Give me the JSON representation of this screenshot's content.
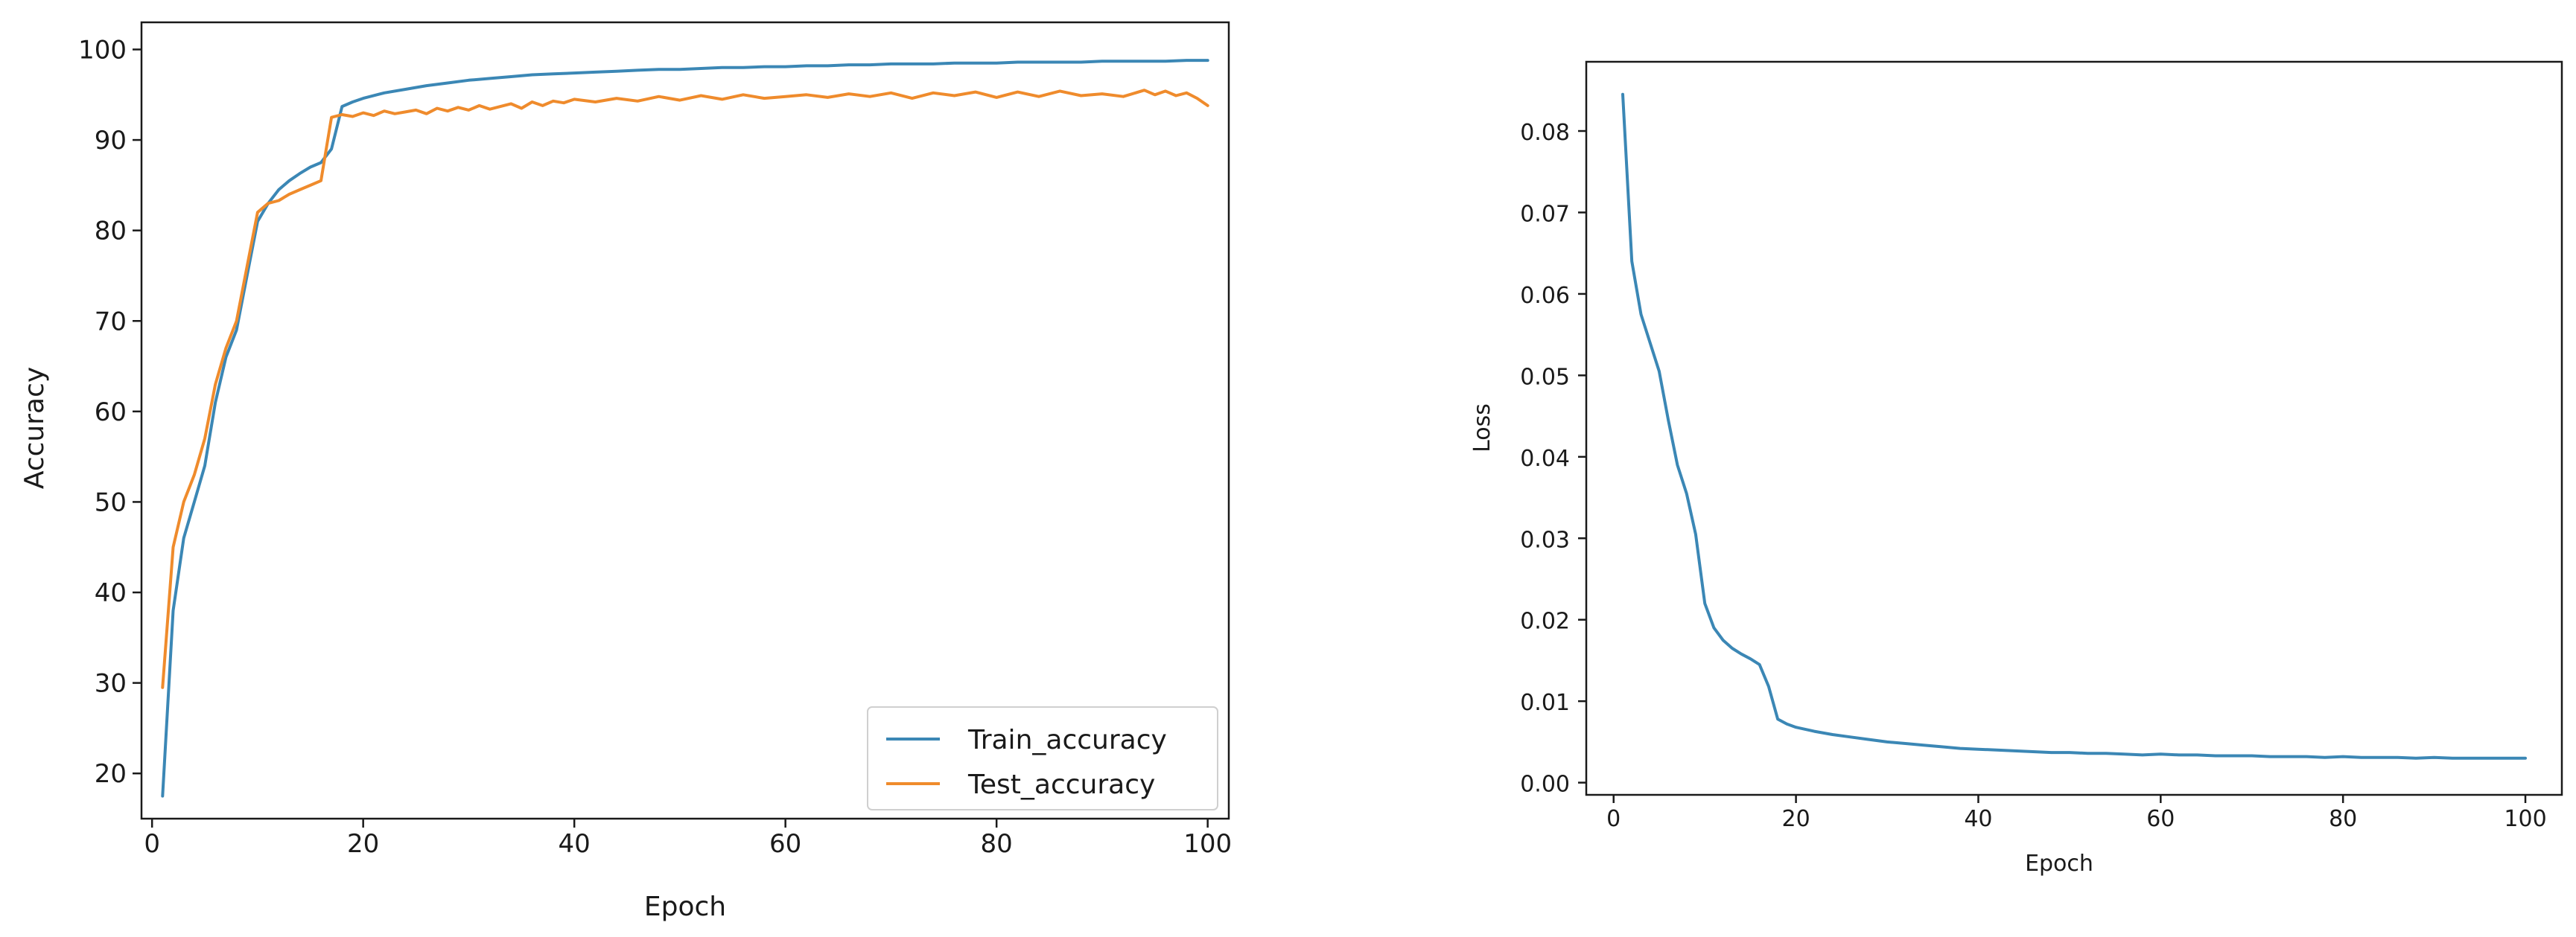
{
  "colors": {
    "train": "#3b87b5",
    "test": "#ef8b2c",
    "loss": "#3b87b5"
  },
  "chart_data": [
    {
      "type": "line",
      "xlabel": "Epoch",
      "ylabel": "Accuracy",
      "xlim": [
        -1,
        102
      ],
      "ylim": [
        15,
        103
      ],
      "xticks": [
        0,
        20,
        40,
        60,
        80,
        100
      ],
      "yticks": [
        20,
        30,
        40,
        50,
        60,
        70,
        80,
        90,
        100
      ],
      "legend": {
        "placement": "lower-right",
        "entries": [
          "Train_accuracy",
          "Test_accuracy"
        ]
      },
      "series": [
        {
          "name": "Train_accuracy",
          "x": [
            1,
            2,
            3,
            4,
            5,
            6,
            7,
            8,
            9,
            10,
            11,
            12,
            13,
            14,
            15,
            16,
            17,
            18,
            19,
            20,
            22,
            24,
            26,
            28,
            30,
            32,
            34,
            36,
            38,
            40,
            42,
            44,
            46,
            48,
            50,
            52,
            54,
            56,
            58,
            60,
            62,
            64,
            66,
            68,
            70,
            72,
            74,
            76,
            78,
            80,
            82,
            84,
            86,
            88,
            90,
            92,
            94,
            96,
            98,
            100
          ],
          "y": [
            17.5,
            38,
            46,
            50,
            54,
            61,
            66,
            69,
            75,
            81,
            83,
            84.5,
            85.5,
            86.3,
            87,
            87.5,
            89,
            93.7,
            94.2,
            94.6,
            95.2,
            95.6,
            96,
            96.3,
            96.6,
            96.8,
            97,
            97.2,
            97.3,
            97.4,
            97.5,
            97.6,
            97.7,
            97.8,
            97.8,
            97.9,
            98,
            98,
            98.1,
            98.1,
            98.2,
            98.2,
            98.3,
            98.3,
            98.4,
            98.4,
            98.4,
            98.5,
            98.5,
            98.5,
            98.6,
            98.6,
            98.6,
            98.6,
            98.7,
            98.7,
            98.7,
            98.7,
            98.8,
            98.8
          ]
        },
        {
          "name": "Test_accuracy",
          "x": [
            1,
            2,
            3,
            4,
            5,
            6,
            7,
            8,
            9,
            10,
            11,
            12,
            13,
            14,
            15,
            16,
            17,
            18,
            19,
            20,
            21,
            22,
            23,
            24,
            25,
            26,
            27,
            28,
            29,
            30,
            31,
            32,
            33,
            34,
            35,
            36,
            37,
            38,
            39,
            40,
            42,
            44,
            46,
            48,
            50,
            52,
            54,
            56,
            58,
            60,
            62,
            64,
            66,
            68,
            70,
            72,
            74,
            76,
            78,
            80,
            82,
            84,
            86,
            88,
            90,
            92,
            94,
            95,
            96,
            97,
            98,
            99,
            100
          ],
          "y": [
            29.5,
            45,
            50,
            53,
            57,
            63,
            67,
            70,
            76,
            82,
            83,
            83.3,
            84,
            84.5,
            85,
            85.5,
            92.5,
            92.8,
            92.6,
            93,
            92.7,
            93.2,
            92.9,
            93.1,
            93.3,
            92.9,
            93.5,
            93.2,
            93.6,
            93.3,
            93.8,
            93.4,
            93.7,
            94,
            93.5,
            94.2,
            93.8,
            94.3,
            94.1,
            94.5,
            94.2,
            94.6,
            94.3,
            94.8,
            94.4,
            94.9,
            94.5,
            95,
            94.6,
            94.8,
            95,
            94.7,
            95.1,
            94.8,
            95.2,
            94.6,
            95.2,
            94.9,
            95.3,
            94.7,
            95.3,
            94.8,
            95.4,
            94.9,
            95.1,
            94.8,
            95.5,
            95,
            95.4,
            94.9,
            95.2,
            94.6,
            93.8
          ]
        }
      ]
    },
    {
      "type": "line",
      "xlabel": "Epoch",
      "ylabel": "Loss",
      "xlim": [
        -3,
        104
      ],
      "ylim": [
        -0.0015,
        0.0885
      ],
      "xticks": [
        0,
        20,
        40,
        60,
        80,
        100
      ],
      "yticks": [
        0.0,
        0.01,
        0.02,
        0.03,
        0.04,
        0.05,
        0.06,
        0.07,
        0.08
      ],
      "ytick_labels": [
        "0.00",
        "0.01",
        "0.02",
        "0.03",
        "0.04",
        "0.05",
        "0.06",
        "0.07",
        "0.08"
      ],
      "series": [
        {
          "x": [
            1,
            2,
            3,
            4,
            5,
            6,
            7,
            8,
            9,
            10,
            11,
            12,
            13,
            14,
            15,
            16,
            17,
            18,
            19,
            20,
            22,
            24,
            26,
            28,
            30,
            32,
            34,
            36,
            38,
            40,
            42,
            44,
            46,
            48,
            50,
            52,
            54,
            56,
            58,
            60,
            62,
            64,
            66,
            68,
            70,
            72,
            74,
            76,
            78,
            80,
            82,
            84,
            86,
            88,
            90,
            92,
            94,
            96,
            98,
            100
          ],
          "y": [
            0.0845,
            0.064,
            0.0575,
            0.054,
            0.0505,
            0.0445,
            0.039,
            0.0355,
            0.0305,
            0.022,
            0.019,
            0.0175,
            0.0165,
            0.0158,
            0.0152,
            0.0145,
            0.0118,
            0.0078,
            0.0072,
            0.0068,
            0.0063,
            0.0059,
            0.0056,
            0.0053,
            0.005,
            0.0048,
            0.0046,
            0.0044,
            0.0042,
            0.0041,
            0.004,
            0.0039,
            0.0038,
            0.0037,
            0.0037,
            0.0036,
            0.0036,
            0.0035,
            0.0034,
            0.0035,
            0.0034,
            0.0034,
            0.0033,
            0.0033,
            0.0033,
            0.0032,
            0.0032,
            0.0032,
            0.0031,
            0.0032,
            0.0031,
            0.0031,
            0.0031,
            0.003,
            0.0031,
            0.003,
            0.003,
            0.003,
            0.003,
            0.003
          ]
        }
      ]
    }
  ]
}
